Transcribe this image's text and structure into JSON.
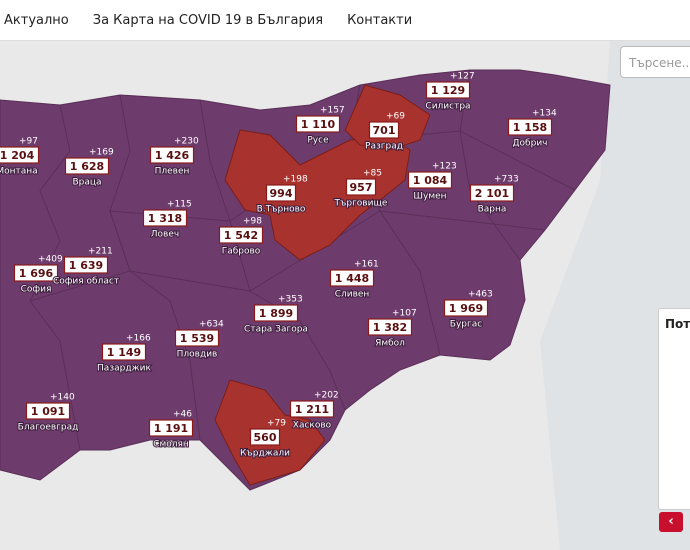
{
  "nav": [
    "Актуално",
    "За Карта на COVID 19 в България",
    "Контакти"
  ],
  "search_placeholder": "Търсене...",
  "panel_title": "Пот",
  "regions": [
    {
      "name": "Силистра",
      "count": "1 129",
      "increase": "+127"
    },
    {
      "name": "Русе",
      "count": "1 110",
      "increase": "+157"
    },
    {
      "name": "Разград",
      "count": "701",
      "increase": "+69"
    },
    {
      "name": "Добрич",
      "count": "1 158",
      "increase": "+134"
    },
    {
      "name": "Монтана",
      "count": "1 204",
      "increase": "+97"
    },
    {
      "name": "Враца",
      "count": "1 628",
      "increase": "+169"
    },
    {
      "name": "Плевен",
      "count": "1 426",
      "increase": "+230"
    },
    {
      "name": "В.Търново",
      "count": "994",
      "increase": "+198"
    },
    {
      "name": "Търговище",
      "count": "957",
      "increase": "+85"
    },
    {
      "name": "Шумен",
      "count": "1 084",
      "increase": "+123"
    },
    {
      "name": "Варна",
      "count": "2 101",
      "increase": "+733"
    },
    {
      "name": "Ловеч",
      "count": "1 318",
      "increase": "+115"
    },
    {
      "name": "Габрово",
      "count": "1 542",
      "increase": "+98"
    },
    {
      "name": "София",
      "count": "1 696",
      "increase": "+409"
    },
    {
      "name": "София област",
      "count": "1 639",
      "increase": "+211"
    },
    {
      "name": "Сливен",
      "count": "1 448",
      "increase": "+161"
    },
    {
      "name": "Стара Загора",
      "count": "1 899",
      "increase": "+353"
    },
    {
      "name": "Ямбол",
      "count": "1 382",
      "increase": "+107"
    },
    {
      "name": "Бургас",
      "count": "1 969",
      "increase": "+463"
    },
    {
      "name": "Пазарджик",
      "count": "1 149",
      "increase": "+166"
    },
    {
      "name": "Пловдив",
      "count": "1 539",
      "increase": "+634"
    },
    {
      "name": "Благоевград",
      "count": "1 091",
      "increase": "+140"
    },
    {
      "name": "Смолян",
      "count": "1 191",
      "increase": "+46"
    },
    {
      "name": "Кърджали",
      "count": "560",
      "increase": "+79"
    },
    {
      "name": "Хасково",
      "count": "1 211",
      "increase": "+202"
    }
  ]
}
